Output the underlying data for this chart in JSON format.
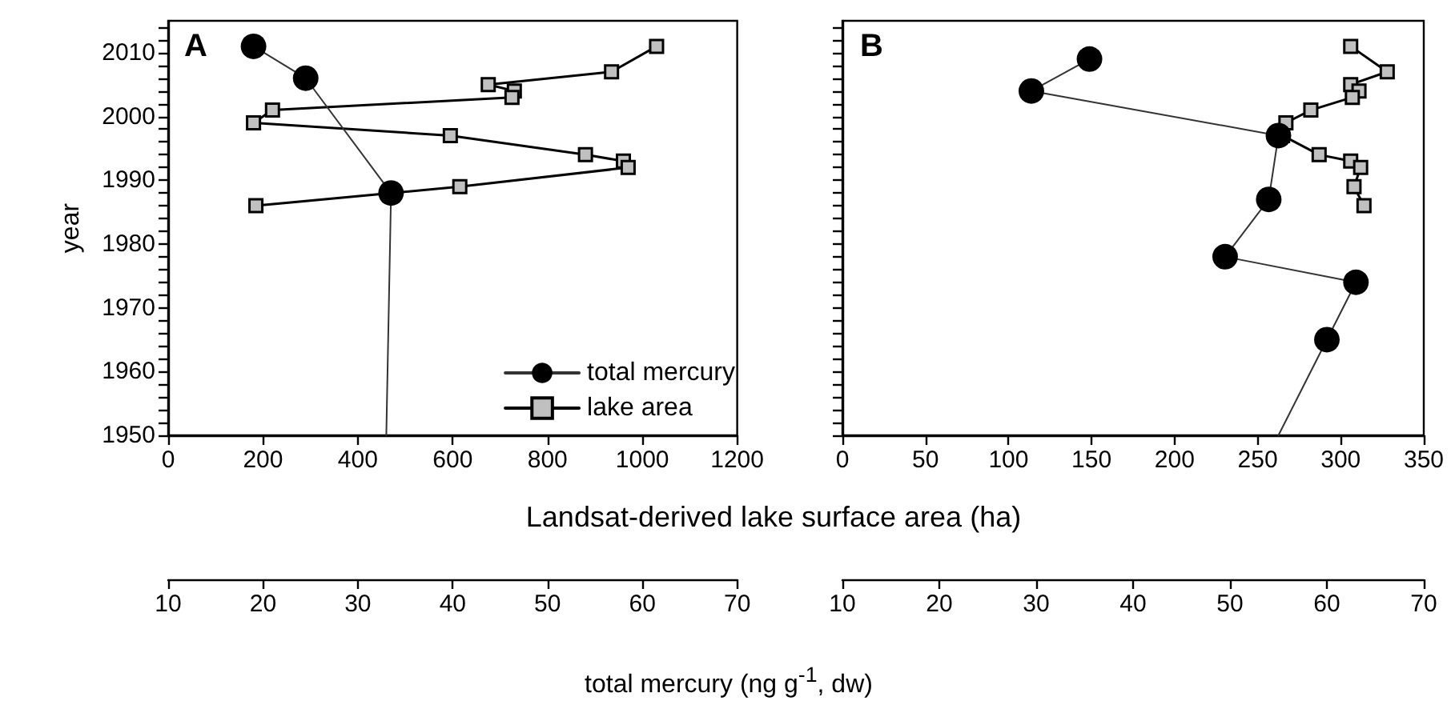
{
  "chart_data": [
    {
      "type": "line",
      "title": "A",
      "orientation": "horizontal",
      "ylabel": "year",
      "xlabel": "Landsat-derived lake surface area (ha)",
      "x2label": "total mercury (ng g$^{-1}$, dw)",
      "legend": "bottom right",
      "grid": false,
      "xlim": [
        0,
        1200
      ],
      "xticks": [
        0,
        200,
        400,
        600,
        800,
        1000,
        1200
      ],
      "x2lim": [
        10,
        70
      ],
      "x2ticks": [
        10,
        20,
        30,
        40,
        50,
        60,
        70
      ],
      "ylim": [
        1950,
        2015
      ],
      "yticks": [
        1950,
        {
          "value": 1952,
          "label": null
        },
        {
          "value": 1954,
          "label": null
        },
        {
          "value": 1956,
          "label": null
        },
        {
          "value": 1958,
          "label": null
        },
        1960,
        {
          "value": 1962,
          "label": null
        },
        {
          "value": 1964,
          "label": null
        },
        {
          "value": 1966,
          "label": null
        },
        {
          "value": 1968,
          "label": null
        },
        1970,
        {
          "value": 1972,
          "label": null
        },
        {
          "value": 1974,
          "label": null
        },
        {
          "value": 1976,
          "label": null
        },
        {
          "value": 1978,
          "label": null
        },
        1980,
        {
          "value": 1982,
          "label": null
        },
        {
          "value": 1984,
          "label": null
        },
        {
          "value": 1986,
          "label": null
        },
        {
          "value": 1988,
          "label": null
        },
        1990,
        {
          "value": 1992,
          "label": null
        },
        {
          "value": 1994,
          "label": null
        },
        {
          "value": 1996,
          "label": null
        },
        {
          "value": 1998,
          "label": null
        },
        2000,
        {
          "value": 2002,
          "label": null
        },
        {
          "value": 2004,
          "label": null
        },
        {
          "value": 2006,
          "label": null
        },
        {
          "value": 2008,
          "label": null
        },
        2010,
        {
          "value": 2012,
          "label": null
        },
        {
          "value": 2014,
          "label": null
        }
      ],
      "series": [
        {
          "name": "total mercury",
          "color": "#000000",
          "marker": "circle",
          "axis": "x2",
          "x": [
            2011,
            2006,
            1988,
            1950
          ],
          "values": [
            19,
            24.5,
            33.5,
            33
          ]
        },
        {
          "name": "lake area",
          "color": "#c0c0c0",
          "marker": "square",
          "x": [
            2011,
            2007,
            2005,
            2004,
            2003,
            2001,
            1999,
            1997,
            1994,
            1993,
            1992,
            1989,
            1986
          ],
          "values": [
            1030,
            935,
            675,
            730,
            725,
            220,
            180,
            595,
            880,
            960,
            970,
            615,
            185
          ]
        }
      ]
    },
    {
      "type": "line",
      "title": "B",
      "orientation": "horizontal",
      "tick_labels": "x",
      "grid": false,
      "xlim": [
        0,
        350
      ],
      "xticks": [
        0,
        50,
        100,
        150,
        200,
        250,
        300,
        350
      ],
      "x2lim": [
        10,
        70
      ],
      "x2ticks": [
        10,
        20,
        30,
        40,
        50,
        60,
        70
      ],
      "ylim": [
        1950,
        2015
      ],
      "yticks": [
        1950,
        {
          "value": 1952,
          "label": null
        },
        {
          "value": 1954,
          "label": null
        },
        {
          "value": 1956,
          "label": null
        },
        {
          "value": 1958,
          "label": null
        },
        1960,
        {
          "value": 1962,
          "label": null
        },
        {
          "value": 1964,
          "label": null
        },
        {
          "value": 1966,
          "label": null
        },
        {
          "value": 1968,
          "label": null
        },
        1970,
        {
          "value": 1972,
          "label": null
        },
        {
          "value": 1974,
          "label": null
        },
        {
          "value": 1976,
          "label": null
        },
        {
          "value": 1978,
          "label": null
        },
        1980,
        {
          "value": 1982,
          "label": null
        },
        {
          "value": 1984,
          "label": null
        },
        {
          "value": 1986,
          "label": null
        },
        {
          "value": 1988,
          "label": null
        },
        1990,
        {
          "value": 1992,
          "label": null
        },
        {
          "value": 1994,
          "label": null
        },
        {
          "value": 1996,
          "label": null
        },
        {
          "value": 1998,
          "label": null
        },
        2000,
        {
          "value": 2002,
          "label": null
        },
        {
          "value": 2004,
          "label": null
        },
        {
          "value": 2006,
          "label": null
        },
        {
          "value": 2008,
          "label": null
        },
        2010,
        {
          "value": 2012,
          "label": null
        },
        {
          "value": 2014,
          "label": null
        }
      ],
      "series": [
        {
          "color": "#000000",
          "marker": "circle",
          "axis": "x2",
          "x": [
            2009,
            2004,
            1997,
            1987,
            1978,
            1974,
            1965,
            1950
          ],
          "values": [
            35.5,
            29.5,
            55,
            54,
            49.5,
            63,
            60,
            55
          ]
        },
        {
          "color": "#c0c0c0",
          "marker": "square",
          "x": [
            2011,
            2007,
            2005,
            2004,
            2003,
            2001,
            1999,
            1997,
            1994,
            1993,
            1992,
            1989,
            1986
          ],
          "values": [
            306,
            328,
            306,
            311,
            307,
            282,
            267,
            265,
            287,
            306,
            312,
            308,
            314
          ]
        }
      ]
    }
  ]
}
